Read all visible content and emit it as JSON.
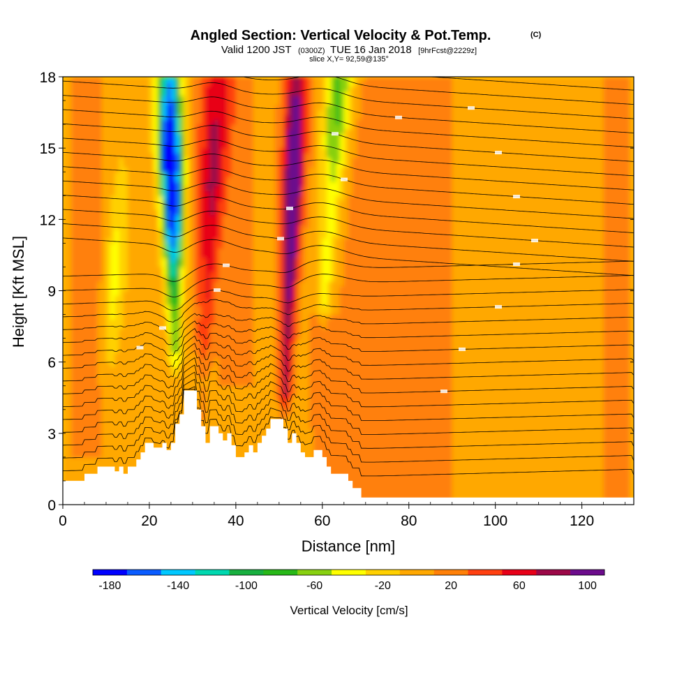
{
  "title": {
    "main": "Angled Section: Vertical Velocity & Pot.Temp.",
    "tag": "(C)",
    "valid_prefix": "Valid 1200 JST",
    "valid_utc": "(0300Z)",
    "valid_date": "TUE 16 Jan 2018",
    "forecast": "[9hrFcst@2229z]",
    "slice": "slice X,Y= 92,59@135°"
  },
  "chart_data": {
    "type": "heatmap",
    "xlabel": "Distance [nm]",
    "ylabel": "Height [Kft MSL]",
    "xlim": [
      0,
      132
    ],
    "ylim": [
      0,
      18
    ],
    "x_ticks": [
      "0",
      "20",
      "40",
      "60",
      "80",
      "100",
      "120"
    ],
    "x_tick_values": [
      0,
      20,
      40,
      60,
      80,
      100,
      120
    ],
    "y_ticks": [
      "0",
      "3",
      "6",
      "9",
      "12",
      "15",
      "18"
    ],
    "y_tick_values": [
      0,
      3,
      6,
      9,
      12,
      15,
      18
    ],
    "colorbar": {
      "label": "Vertical Velocity [cm/s]",
      "min": -190,
      "max": 110,
      "step": 20,
      "tick_values": [
        -180,
        -140,
        -100,
        -60,
        -20,
        20,
        60,
        100
      ],
      "tick_labels": [
        "-180",
        "-140",
        "-100",
        "-60",
        "-20",
        "20",
        "60",
        "100"
      ],
      "colors": [
        "#0000ff",
        "#0a5cff",
        "#00c8ff",
        "#00d8b0",
        "#18b040",
        "#28b818",
        "#88d010",
        "#ffff00",
        "#ffd000",
        "#ffa800",
        "#ff8008",
        "#ff4010",
        "#e80018",
        "#9c0848",
        "#6c0c8c"
      ]
    },
    "updrafts": [
      {
        "x": 35,
        "top_value": 60,
        "bottom_value": 25
      },
      {
        "x": 52.5,
        "top_value": 100,
        "bottom_value": 60
      }
    ],
    "downdrafts": [
      {
        "x": 25.5,
        "top_value": -180,
        "bottom_value": -40
      },
      {
        "x": 63,
        "top_value": -80,
        "bottom_value": -20
      },
      {
        "x": 11,
        "top_value": -40,
        "bottom_value": -20
      }
    ],
    "terrain": [
      [
        0,
        1.0
      ],
      [
        5,
        1.0
      ],
      [
        5,
        1.3
      ],
      [
        8,
        1.3
      ],
      [
        8,
        1.6
      ],
      [
        12,
        1.6
      ],
      [
        12,
        1.4
      ],
      [
        13,
        1.4
      ],
      [
        13,
        1.6
      ],
      [
        14,
        1.6
      ],
      [
        14,
        1.3
      ],
      [
        15,
        1.3
      ],
      [
        15,
        1.6
      ],
      [
        17,
        1.6
      ],
      [
        17,
        1.9
      ],
      [
        18,
        1.9
      ],
      [
        18,
        2.2
      ],
      [
        19,
        2.2
      ],
      [
        19,
        2.6
      ],
      [
        21,
        2.6
      ],
      [
        21,
        2.4
      ],
      [
        23,
        2.4
      ],
      [
        23,
        2.6
      ],
      [
        24,
        2.6
      ],
      [
        24,
        2.3
      ],
      [
        25,
        2.3
      ],
      [
        25,
        2.6
      ],
      [
        26,
        2.6
      ],
      [
        26,
        3.4
      ],
      [
        27,
        3.4
      ],
      [
        27,
        3.8
      ],
      [
        28,
        3.8
      ],
      [
        28,
        4.8
      ],
      [
        31,
        4.8
      ],
      [
        31,
        4.0
      ],
      [
        32,
        4.0
      ],
      [
        32,
        3.3
      ],
      [
        33,
        3.3
      ],
      [
        33,
        2.6
      ],
      [
        34,
        2.6
      ],
      [
        34,
        3.3
      ],
      [
        36,
        3.3
      ],
      [
        36,
        3.0
      ],
      [
        37,
        3.0
      ],
      [
        37,
        2.7
      ],
      [
        38,
        2.7
      ],
      [
        38,
        3.0
      ],
      [
        39,
        3.0
      ],
      [
        39,
        2.5
      ],
      [
        40,
        2.5
      ],
      [
        40,
        2.0
      ],
      [
        42,
        2.0
      ],
      [
        42,
        2.2
      ],
      [
        43,
        2.2
      ],
      [
        43,
        2.5
      ],
      [
        44,
        2.5
      ],
      [
        44,
        2.2
      ],
      [
        45,
        2.2
      ],
      [
        45,
        2.6
      ],
      [
        46,
        2.6
      ],
      [
        46,
        2.9
      ],
      [
        47,
        2.9
      ],
      [
        47,
        3.2
      ],
      [
        48,
        3.2
      ],
      [
        48,
        3.6
      ],
      [
        51,
        3.6
      ],
      [
        51,
        3.2
      ],
      [
        52,
        3.2
      ],
      [
        52,
        2.6
      ],
      [
        53,
        2.6
      ],
      [
        53,
        3.0
      ],
      [
        54,
        3.0
      ],
      [
        54,
        2.6
      ],
      [
        55,
        2.6
      ],
      [
        55,
        2.2
      ],
      [
        56,
        2.2
      ],
      [
        56,
        2.0
      ],
      [
        58,
        2.0
      ],
      [
        58,
        2.3
      ],
      [
        60,
        2.3
      ],
      [
        60,
        2.0
      ],
      [
        61,
        2.0
      ],
      [
        61,
        1.6
      ],
      [
        62,
        1.6
      ],
      [
        62,
        1.3
      ],
      [
        66,
        1.3
      ],
      [
        66,
        1.0
      ],
      [
        67,
        1.0
      ],
      [
        67,
        0.7
      ],
      [
        69,
        0.7
      ],
      [
        69,
        0.3
      ],
      [
        132,
        0.3
      ],
      [
        132,
        0
      ]
    ],
    "potential_temperature": {
      "unit": "C",
      "note_labels_shown": true,
      "contour_count": 31
    }
  }
}
